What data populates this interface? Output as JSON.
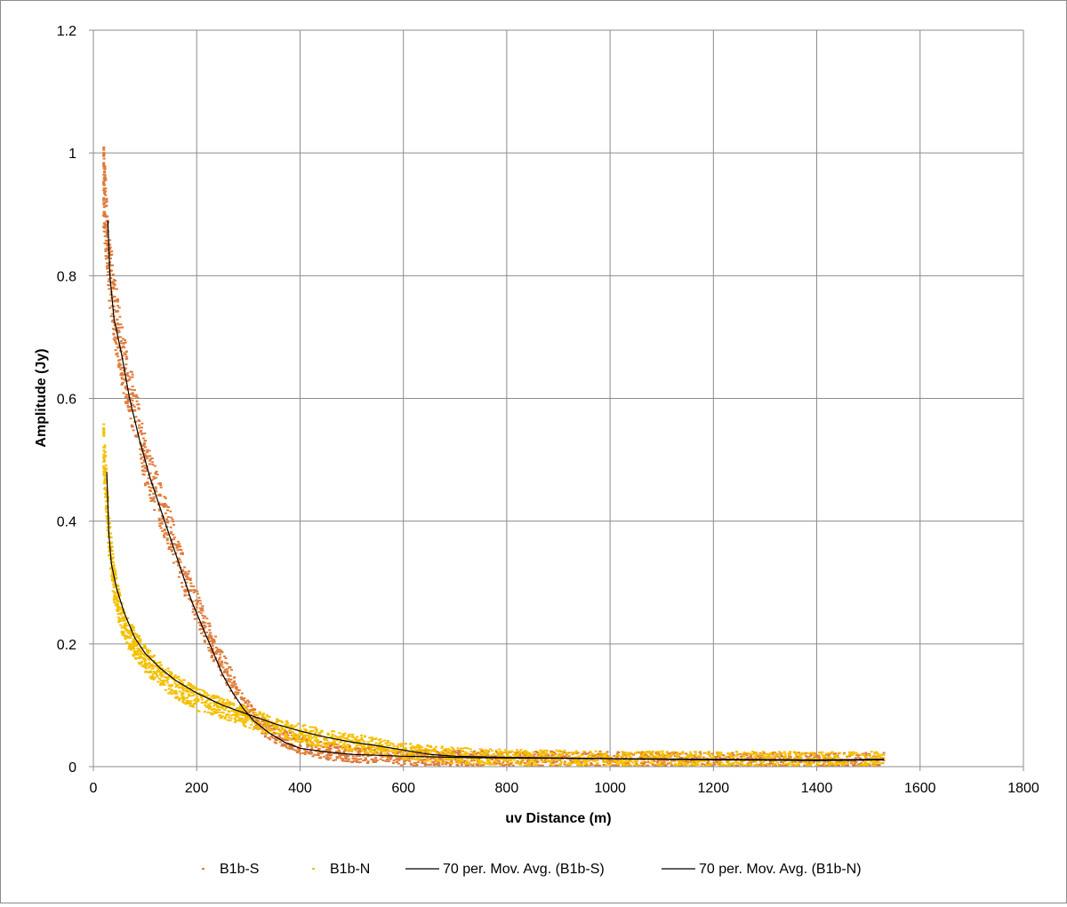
{
  "chart_data": {
    "type": "scatter",
    "xlabel": "uv Distance (m)",
    "ylabel": "Amplitude    (Jy)",
    "xlim": [
      0,
      1800
    ],
    "ylim": [
      0,
      1.2
    ],
    "x_ticks": [
      "0",
      "200",
      "400",
      "600",
      "800",
      "1000",
      "1200",
      "1400",
      "1600",
      "1800"
    ],
    "y_ticks": [
      "0",
      "0.2",
      "0.4",
      "0.6",
      "0.8",
      "1",
      "1.2"
    ],
    "grid": true,
    "legend_position": "bottom",
    "series": [
      {
        "name": "B1b-S",
        "kind": "scatter",
        "color": "#e07b39",
        "points": [
          [
            20,
            0.95
          ],
          [
            25,
            0.88
          ],
          [
            30,
            0.82
          ],
          [
            40,
            0.75
          ],
          [
            50,
            0.7
          ],
          [
            60,
            0.65
          ],
          [
            80,
            0.58
          ],
          [
            100,
            0.5
          ],
          [
            120,
            0.45
          ],
          [
            150,
            0.38
          ],
          [
            180,
            0.3
          ],
          [
            200,
            0.26
          ],
          [
            230,
            0.2
          ],
          [
            260,
            0.15
          ],
          [
            290,
            0.1
          ],
          [
            320,
            0.07
          ],
          [
            360,
            0.05
          ],
          [
            400,
            0.035
          ],
          [
            450,
            0.025
          ],
          [
            500,
            0.02
          ],
          [
            600,
            0.015
          ],
          [
            800,
            0.013
          ],
          [
            1000,
            0.012
          ],
          [
            1200,
            0.011
          ],
          [
            1400,
            0.01
          ],
          [
            1530,
            0.01
          ]
        ]
      },
      {
        "name": "B1b-N",
        "kind": "scatter",
        "color": "#f5c000",
        "points": [
          [
            20,
            0.52
          ],
          [
            25,
            0.45
          ],
          [
            30,
            0.38
          ],
          [
            40,
            0.3
          ],
          [
            50,
            0.26
          ],
          [
            60,
            0.23
          ],
          [
            80,
            0.2
          ],
          [
            100,
            0.175
          ],
          [
            130,
            0.15
          ],
          [
            160,
            0.13
          ],
          [
            200,
            0.11
          ],
          [
            250,
            0.095
          ],
          [
            300,
            0.08
          ],
          [
            350,
            0.065
          ],
          [
            400,
            0.055
          ],
          [
            450,
            0.045
          ],
          [
            500,
            0.04
          ],
          [
            550,
            0.032
          ],
          [
            600,
            0.025
          ],
          [
            700,
            0.018
          ],
          [
            800,
            0.015
          ],
          [
            1000,
            0.013
          ],
          [
            1200,
            0.012
          ],
          [
            1400,
            0.012
          ],
          [
            1530,
            0.012
          ]
        ]
      },
      {
        "name": "70 per. Mov. Avg.  (B1b-S)",
        "kind": "line",
        "color": "#000000",
        "points": [
          [
            28,
            0.89
          ],
          [
            32,
            0.8
          ],
          [
            40,
            0.73
          ],
          [
            55,
            0.67
          ],
          [
            70,
            0.6
          ],
          [
            90,
            0.53
          ],
          [
            110,
            0.47
          ],
          [
            130,
            0.42
          ],
          [
            150,
            0.37
          ],
          [
            170,
            0.32
          ],
          [
            190,
            0.27
          ],
          [
            210,
            0.23
          ],
          [
            230,
            0.19
          ],
          [
            250,
            0.15
          ],
          [
            270,
            0.12
          ],
          [
            290,
            0.095
          ],
          [
            310,
            0.075
          ],
          [
            340,
            0.055
          ],
          [
            370,
            0.04
          ],
          [
            400,
            0.03
          ],
          [
            450,
            0.024
          ],
          [
            500,
            0.02
          ],
          [
            600,
            0.017
          ],
          [
            700,
            0.015
          ],
          [
            800,
            0.014
          ],
          [
            1000,
            0.013
          ],
          [
            1200,
            0.011
          ],
          [
            1400,
            0.01
          ],
          [
            1530,
            0.011
          ]
        ]
      },
      {
        "name": "70 per. Mov. Avg.  (B1b-N)",
        "kind": "line",
        "color": "#000000",
        "points": [
          [
            26,
            0.48
          ],
          [
            30,
            0.38
          ],
          [
            35,
            0.33
          ],
          [
            45,
            0.29
          ],
          [
            60,
            0.25
          ],
          [
            80,
            0.21
          ],
          [
            100,
            0.185
          ],
          [
            130,
            0.16
          ],
          [
            160,
            0.14
          ],
          [
            200,
            0.12
          ],
          [
            250,
            0.1
          ],
          [
            300,
            0.085
          ],
          [
            350,
            0.07
          ],
          [
            400,
            0.058
          ],
          [
            450,
            0.048
          ],
          [
            500,
            0.04
          ],
          [
            550,
            0.034
          ],
          [
            600,
            0.027
          ],
          [
            650,
            0.02
          ],
          [
            700,
            0.017
          ],
          [
            800,
            0.015
          ],
          [
            1000,
            0.013
          ],
          [
            1200,
            0.012
          ],
          [
            1400,
            0.011
          ],
          [
            1530,
            0.012
          ]
        ]
      }
    ]
  }
}
